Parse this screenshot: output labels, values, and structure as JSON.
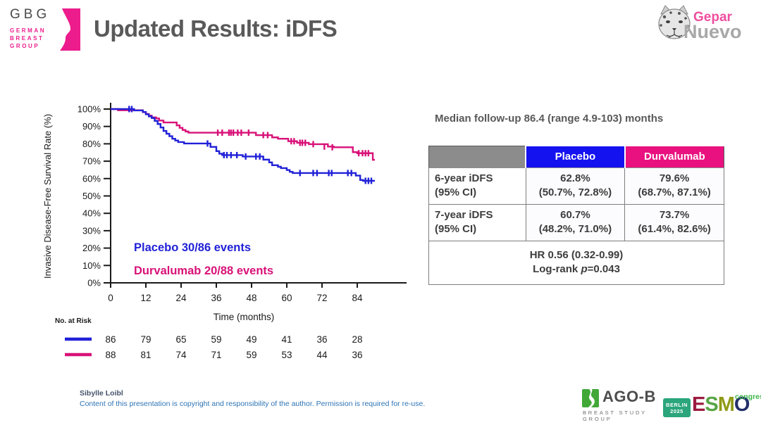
{
  "header": {
    "title": "Updated Results: iDFS",
    "gbg_logo": {
      "acronym": "GBG",
      "line1": "GERMAN",
      "line2": "BREAST",
      "line3": "GROUP"
    },
    "gepar_logo": {
      "part1": "Gepar",
      "part2": "Nuevo"
    }
  },
  "colors": {
    "placebo_blue": "#2121d8",
    "durvalumab_pink": "#d81178",
    "header_blue": "#1512f0",
    "header_pink": "#e9117f",
    "title_gray": "#595959",
    "axis_black": "#1a1a1a",
    "gbg_pink": "#ec1c8c",
    "agob_green": "#41a838",
    "esmo_teal": "#2aa57c"
  },
  "chart_data": {
    "type": "line",
    "subtype": "kaplan-meier-step",
    "ylabel": "Invasive Disease-Free Survival Rate (%)",
    "xlabel": "Time (months)",
    "ylim": [
      0,
      100
    ],
    "xlim": [
      0,
      90
    ],
    "grid": false,
    "y_ticks": [
      {
        "value": 100,
        "label": "100%"
      },
      {
        "value": 90,
        "label": "90%"
      },
      {
        "value": 80,
        "label": "80%"
      },
      {
        "value": 70,
        "label": "70%"
      },
      {
        "value": 60,
        "label": "60%"
      },
      {
        "value": 50,
        "label": "50%"
      },
      {
        "value": 40,
        "label": "40%"
      },
      {
        "value": 30,
        "label": "30%"
      },
      {
        "value": 20,
        "label": "20%"
      },
      {
        "value": 10,
        "label": "10%"
      },
      {
        "value": 0,
        "label": "0%"
      }
    ],
    "x_ticks": [
      {
        "value": 0,
        "label": "0"
      },
      {
        "value": 12,
        "label": "12"
      },
      {
        "value": 24,
        "label": "24"
      },
      {
        "value": 36,
        "label": "36"
      },
      {
        "value": 48,
        "label": "48"
      },
      {
        "value": 60,
        "label": "60"
      },
      {
        "value": 72,
        "label": "72"
      },
      {
        "value": 84,
        "label": "84"
      }
    ],
    "risk_header": "No. at Risk",
    "series": [
      {
        "name": "Durvalumab",
        "color": "#d81178",
        "events_annotation": "Durvalumab 20/88 events",
        "points": [
          [
            0,
            100
          ],
          [
            2.5,
            99.3
          ],
          [
            11,
            98.2
          ],
          [
            12,
            97.2
          ],
          [
            13,
            96.2
          ],
          [
            14,
            95.2
          ],
          [
            15.5,
            94.6
          ],
          [
            16.5,
            93.4
          ],
          [
            18,
            92.3
          ],
          [
            22.5,
            90.6
          ],
          [
            23.5,
            89.2
          ],
          [
            24.5,
            88
          ],
          [
            25.5,
            87.1
          ],
          [
            26.5,
            86.4
          ],
          [
            49.5,
            85
          ],
          [
            55,
            83.7
          ],
          [
            57,
            82.9
          ],
          [
            60.5,
            81.5
          ],
          [
            63.5,
            80.6
          ],
          [
            67.5,
            79.8
          ],
          [
            74,
            78.4
          ],
          [
            76,
            78
          ],
          [
            82.5,
            75.2
          ],
          [
            84,
            74.6
          ],
          [
            89.3,
            70.8
          ],
          [
            90,
            70.8
          ]
        ],
        "censor_marks": [
          [
            36.5,
            86.4
          ],
          [
            38,
            86.4
          ],
          [
            40.3,
            86.4
          ],
          [
            41,
            86.4
          ],
          [
            41.8,
            86.4
          ],
          [
            43.3,
            86.4
          ],
          [
            44.5,
            86.4
          ],
          [
            47,
            86.4
          ],
          [
            52,
            85
          ],
          [
            53.5,
            85
          ],
          [
            61.5,
            81.5
          ],
          [
            62.5,
            81.5
          ],
          [
            64.5,
            80.6
          ],
          [
            65.3,
            80.6
          ],
          [
            66.3,
            80.6
          ],
          [
            69,
            79.8
          ],
          [
            72.8,
            78.4
          ],
          [
            75.5,
            78
          ],
          [
            84.5,
            74.6
          ],
          [
            85.8,
            74.6
          ],
          [
            86.8,
            74.6
          ],
          [
            87.8,
            74.6
          ]
        ],
        "at_risk": [
          88,
          81,
          74,
          71,
          59,
          53,
          44,
          36
        ]
      },
      {
        "name": "Placebo",
        "color": "#2121d8",
        "events_annotation": "Placebo 30/86 events",
        "points": [
          [
            0,
            100
          ],
          [
            8,
            99.2
          ],
          [
            11,
            98.3
          ],
          [
            12,
            97
          ],
          [
            13,
            95.8
          ],
          [
            14,
            94.8
          ],
          [
            15,
            93.2
          ],
          [
            16,
            91.4
          ],
          [
            17,
            89.4
          ],
          [
            18,
            87.4
          ],
          [
            19,
            85.8
          ],
          [
            20,
            84.4
          ],
          [
            21,
            82.9
          ],
          [
            22,
            81.9
          ],
          [
            23,
            81
          ],
          [
            25,
            80.2
          ],
          [
            34,
            78.2
          ],
          [
            36,
            75.8
          ],
          [
            37,
            74.3
          ],
          [
            38,
            73.5
          ],
          [
            45,
            72.7
          ],
          [
            52,
            70.9
          ],
          [
            54,
            69.3
          ],
          [
            55,
            67.7
          ],
          [
            57,
            66.8
          ],
          [
            58,
            66
          ],
          [
            60,
            64.9
          ],
          [
            61,
            63.9
          ],
          [
            62,
            63.2
          ],
          [
            83.5,
            61.7
          ],
          [
            85,
            59.2
          ],
          [
            86,
            58.7
          ],
          [
            90,
            58.7
          ]
        ],
        "censor_marks": [
          [
            6.3,
            100
          ],
          [
            7.2,
            100
          ],
          [
            33,
            80.2
          ],
          [
            38.6,
            73.5
          ],
          [
            39.6,
            73.5
          ],
          [
            41,
            73.5
          ],
          [
            43,
            73.5
          ],
          [
            46,
            72.7
          ],
          [
            49.5,
            72.7
          ],
          [
            50.8,
            72.7
          ],
          [
            64.5,
            63.2
          ],
          [
            69,
            63.2
          ],
          [
            70.3,
            63.2
          ],
          [
            74.3,
            63.2
          ],
          [
            75.3,
            63.2
          ],
          [
            80.8,
            63.2
          ],
          [
            82,
            63.2
          ],
          [
            86.8,
            58.7
          ],
          [
            87.8,
            58.7
          ],
          [
            88.8,
            58.7
          ]
        ],
        "at_risk": [
          86,
          79,
          65,
          59,
          49,
          41,
          36,
          28
        ]
      }
    ]
  },
  "results": {
    "median_followup": "Median follow-up 86.4 (range 4.9-103) months",
    "table": {
      "col_placebo": "Placebo",
      "col_durvalumab": "Durvalumab",
      "rows": [
        {
          "label1": "6-year iDFS",
          "label2": "(95% CI)",
          "placebo1": "62.8%",
          "placebo2": "(50.7%, 72.8%)",
          "durva1": "79.6%",
          "durva2": "(68.7%, 87.1%)"
        },
        {
          "label1": "7-year iDFS",
          "label2": "(95% CI)",
          "placebo1": "60.7%",
          "placebo2": "(48.2%, 71.0%)",
          "durva1": "73.7%",
          "durva2": "(61.4%, 82.6%)"
        }
      ],
      "hr_line": "HR 0.56 (0.32-0.99)",
      "logrank_prefix": "Log-rank ",
      "logrank_p": "p",
      "logrank_value": "=0.043"
    }
  },
  "footer": {
    "author": "Sibylle Loibl",
    "copyright": "Content of this presentation is copyright and responsibility of the author. Permission is required for re-use.",
    "agob": {
      "name": "AGO-B",
      "subtitle": "BREAST STUDY GROUP"
    },
    "esmo": {
      "city": "BERLIN",
      "year": "2025",
      "letters": [
        "E",
        "S",
        "M",
        "O"
      ],
      "letter_colors": [
        "#9c1b40",
        "#57a546",
        "#8f9a16",
        "#232f6b"
      ],
      "congress": "congress"
    }
  }
}
